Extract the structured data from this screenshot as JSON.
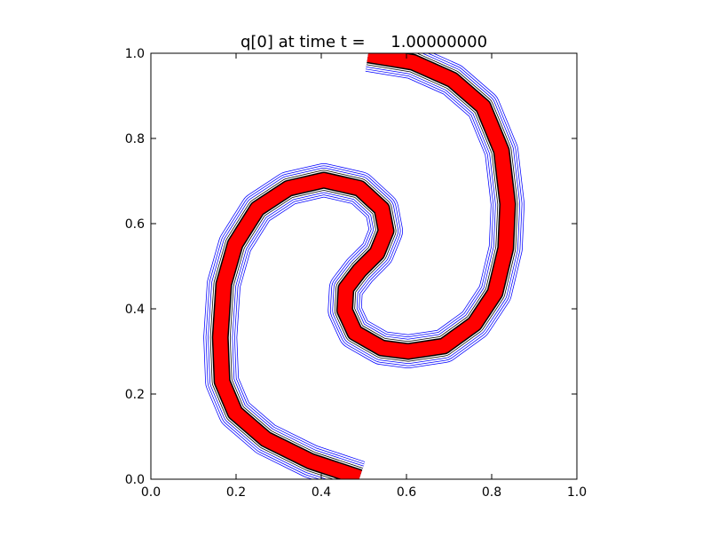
{
  "chart_data": {
    "type": "line",
    "title": "q[0] at time t =     1.00000000",
    "xlabel": "",
    "ylabel": "",
    "xlim": [
      0.0,
      1.0
    ],
    "ylim": [
      0.0,
      1.0
    ],
    "xticks": [
      "0.0",
      "0.2",
      "0.4",
      "0.6",
      "0.8",
      "1.0"
    ],
    "yticks": [
      "0.0",
      "0.2",
      "0.4",
      "0.6",
      "0.8",
      "1.0"
    ],
    "grid": false,
    "colors": {
      "filled": "#ff0000",
      "outline": "#000000",
      "contours": "#0000ff"
    },
    "series": [
      {
        "x": [
          0.49,
          0.375,
          0.27,
          0.198,
          0.167,
          0.163,
          0.171,
          0.198,
          0.25,
          0.323,
          0.406,
          0.49,
          0.542,
          0.552,
          0.531,
          0.49,
          0.458,
          0.455,
          0.479,
          0.542,
          0.604,
          0.6875,
          0.76,
          0.808,
          0.833,
          0.8375,
          0.823,
          0.78,
          0.708,
          0.615,
          0.51
        ],
        "y": [
          0.004,
          0.042,
          0.094,
          0.156,
          0.229,
          0.333,
          0.458,
          0.552,
          0.635,
          0.683,
          0.702,
          0.683,
          0.635,
          0.583,
          0.531,
          0.49,
          0.448,
          0.396,
          0.344,
          0.308,
          0.3,
          0.3125,
          0.365,
          0.4375,
          0.542,
          0.646,
          0.771,
          0.875,
          0.9375,
          0.979,
          0.996
        ]
      }
    ]
  }
}
